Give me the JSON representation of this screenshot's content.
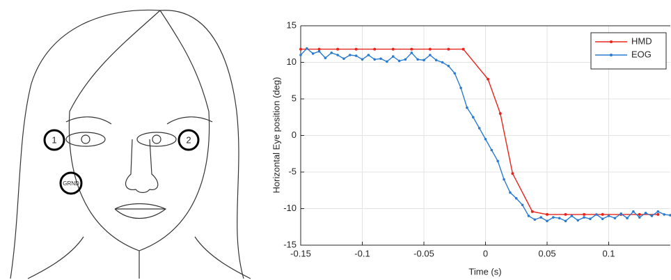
{
  "figure": {
    "electrodes": [
      "1",
      "2",
      "GRND"
    ]
  },
  "chart_data": {
    "type": "line",
    "xlabel": "Time (s)",
    "ylabel": "Horizontal Eye position (deg)",
    "xlim": [
      -0.15,
      0.15
    ],
    "ylim": [
      -15,
      15
    ],
    "xticks": [
      -0.15,
      -0.1,
      -0.05,
      0,
      0.05,
      0.1
    ],
    "yticks": [
      -15,
      -10,
      -5,
      0,
      5,
      10,
      15
    ],
    "grid": true,
    "legend": "northeast",
    "series": [
      {
        "name": "HMD",
        "color": "#e8241c",
        "x": [
          -0.15,
          -0.135,
          -0.12,
          -0.105,
          -0.09,
          -0.075,
          -0.06,
          -0.045,
          -0.03,
          -0.018,
          0.002,
          0.012,
          0.022,
          0.038,
          0.05,
          0.065,
          0.08,
          0.095,
          0.11,
          0.125,
          0.14
        ],
        "values": [
          11.8,
          11.8,
          11.8,
          11.8,
          11.8,
          11.8,
          11.8,
          11.8,
          11.8,
          11.8,
          7.7,
          3.0,
          -5.2,
          -10.4,
          -10.8,
          -10.8,
          -10.8,
          -10.8,
          -10.8,
          -10.8,
          -10.8
        ]
      },
      {
        "name": "EOG",
        "color": "#2a7bd0",
        "x": [
          -0.15,
          -0.145,
          -0.14,
          -0.135,
          -0.13,
          -0.125,
          -0.12,
          -0.115,
          -0.11,
          -0.105,
          -0.1,
          -0.095,
          -0.09,
          -0.085,
          -0.08,
          -0.075,
          -0.07,
          -0.065,
          -0.06,
          -0.055,
          -0.05,
          -0.045,
          -0.04,
          -0.035,
          -0.03,
          -0.025,
          -0.02,
          -0.015,
          -0.01,
          -0.005,
          0,
          0.005,
          0.01,
          0.015,
          0.02,
          0.025,
          0.03,
          0.035,
          0.04,
          0.045,
          0.05,
          0.055,
          0.06,
          0.065,
          0.07,
          0.075,
          0.08,
          0.085,
          0.09,
          0.095,
          0.1,
          0.105,
          0.11,
          0.115,
          0.12,
          0.125,
          0.13,
          0.135,
          0.14,
          0.145,
          0.15
        ],
        "values": [
          11.0,
          11.9,
          11.2,
          11.5,
          10.6,
          11.3,
          11.0,
          10.5,
          11.0,
          10.9,
          10.4,
          11.0,
          10.4,
          10.5,
          10.1,
          10.8,
          10.2,
          10.4,
          11.3,
          10.4,
          10.3,
          11.0,
          10.3,
          10.0,
          9.5,
          8.5,
          6.5,
          3.8,
          2.5,
          1.0,
          -0.5,
          -2.0,
          -3.5,
          -6.0,
          -7.8,
          -8.6,
          -9.5,
          -11.0,
          -11.5,
          -11.2,
          -11.7,
          -11.2,
          -11.3,
          -11.7,
          -11.0,
          -11.6,
          -11.2,
          -11.4,
          -10.8,
          -11.4,
          -11.0,
          -11.3,
          -10.7,
          -11.3,
          -10.4,
          -11.2,
          -10.6,
          -11.0,
          -10.4,
          -10.8,
          -10.9
        ]
      }
    ]
  }
}
